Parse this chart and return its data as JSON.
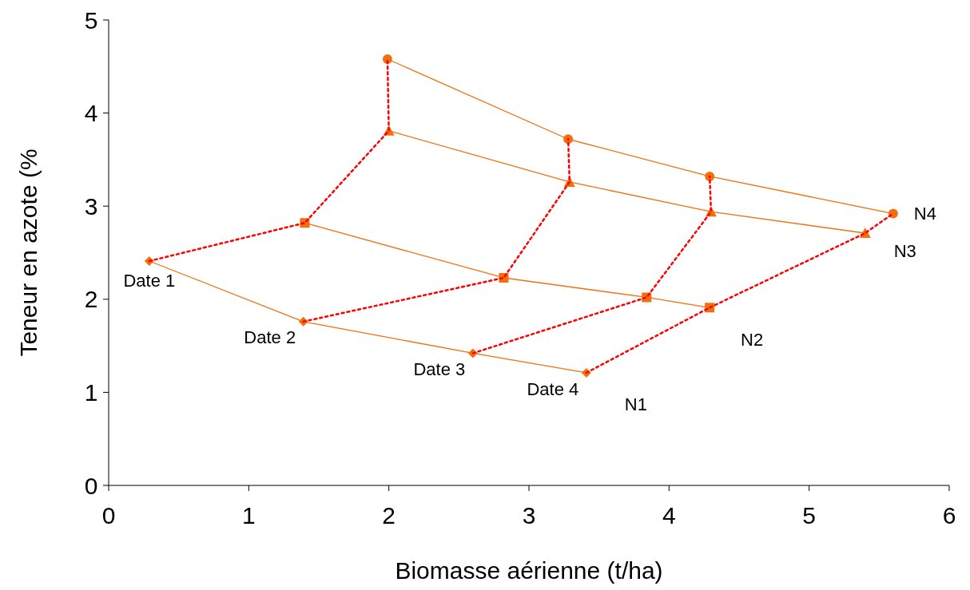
{
  "chart_data": {
    "type": "line",
    "xlabel": "Biomasse aérienne (t/ha)",
    "ylabel": "Teneur en azote (%",
    "xlim": [
      0,
      6
    ],
    "ylim": [
      0,
      5
    ],
    "xticks": [
      0,
      1,
      2,
      3,
      4,
      5,
      6
    ],
    "yticks": [
      0,
      1,
      2,
      3,
      4,
      5
    ],
    "series": [
      {
        "name": "N1",
        "color": "#f07010",
        "marker": "diamond",
        "line_style": "solid",
        "x": [
          0.29,
          1.39,
          2.6,
          3.41
        ],
        "values": [
          2.41,
          1.76,
          1.42,
          1.21
        ]
      },
      {
        "name": "N2",
        "color": "#f07010",
        "marker": "square",
        "line_style": "solid",
        "x": [
          1.4,
          2.82,
          3.84,
          4.29
        ],
        "values": [
          2.82,
          2.23,
          2.02,
          1.91
        ]
      },
      {
        "name": "N3",
        "color": "#f07010",
        "marker": "triangle",
        "line_style": "solid",
        "x": [
          2.0,
          3.29,
          4.3,
          5.4
        ],
        "values": [
          3.81,
          3.26,
          2.94,
          2.71
        ]
      },
      {
        "name": "N4",
        "color": "#f07010",
        "marker": "circle",
        "line_style": "solid",
        "x": [
          1.99,
          3.28,
          4.29,
          5.6
        ],
        "values": [
          4.58,
          3.72,
          3.32,
          2.92
        ]
      },
      {
        "name": "Date 1",
        "color": "#ff0000",
        "marker": "none",
        "line_style": "dotted",
        "x": [
          0.29,
          1.4,
          2.0,
          1.99
        ],
        "values": [
          2.41,
          2.82,
          3.81,
          4.58
        ]
      },
      {
        "name": "Date 2",
        "color": "#ff0000",
        "marker": "none",
        "line_style": "dotted",
        "x": [
          1.39,
          2.82,
          3.29,
          3.28
        ],
        "values": [
          1.76,
          2.23,
          3.26,
          3.72
        ]
      },
      {
        "name": "Date 3",
        "color": "#ff0000",
        "marker": "none",
        "line_style": "dotted",
        "x": [
          2.6,
          3.84,
          4.3,
          4.29
        ],
        "values": [
          1.42,
          2.02,
          2.94,
          3.32
        ]
      },
      {
        "name": "Date 4",
        "color": "#ff0000",
        "marker": "none",
        "line_style": "dotted",
        "x": [
          3.41,
          4.29,
          5.4,
          5.6
        ],
        "values": [
          1.21,
          1.91,
          2.71,
          2.92
        ]
      }
    ]
  }
}
